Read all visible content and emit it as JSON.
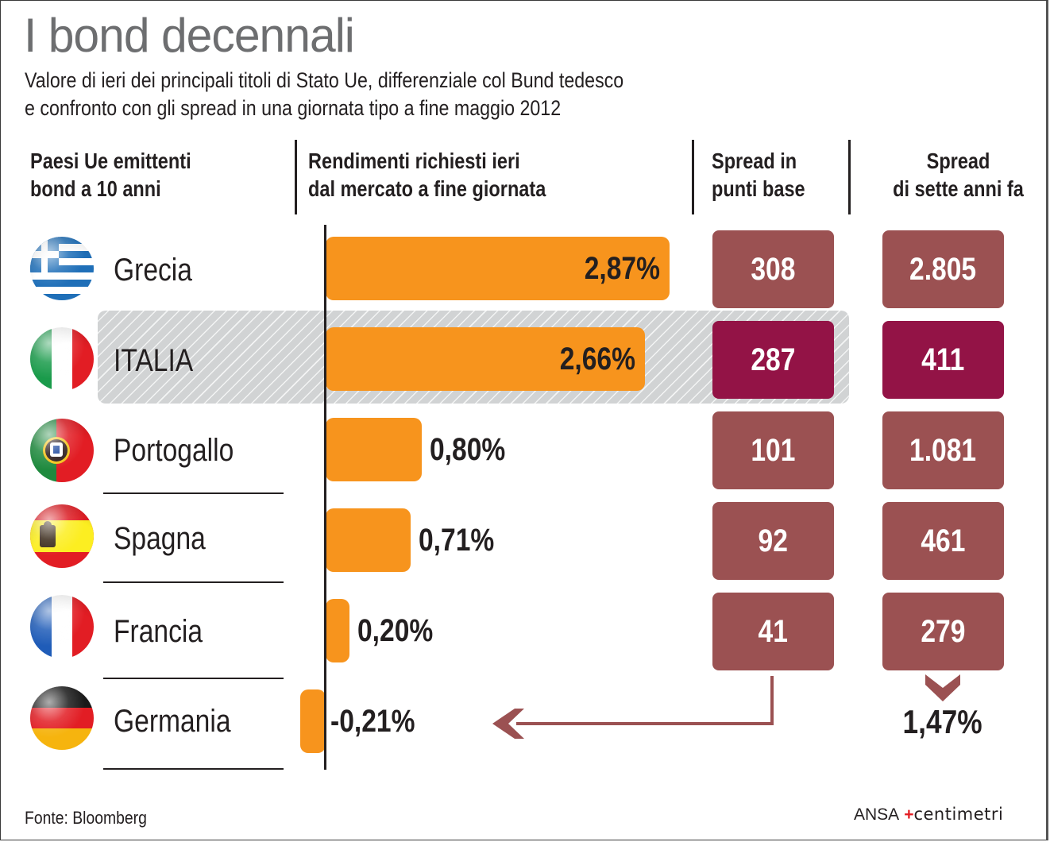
{
  "title": "I bond decennali",
  "subtitle_lines": [
    "Valore di ieri dei principali titoli di Stato Ue, differenziale col Bund tedesco",
    "e confronto con gli spread in una giornata tipo a fine maggio 2012"
  ],
  "columns": {
    "country": [
      "Paesi Ue emittenti",
      "bond a 10 anni"
    ],
    "yield": [
      "Rendimenti richiesti ieri",
      "dal mercato a fine giornata"
    ],
    "spread_now": [
      "Spread in",
      "punti base"
    ],
    "spread_then": [
      "Spread",
      "di sette anni fa"
    ]
  },
  "colors": {
    "bar": "#f7941d",
    "spread_box": "#9b5152",
    "spread_box_highlight": "#931346",
    "highlight_band": "#d1d3d4",
    "title": "#6d6e70"
  },
  "rows": [
    {
      "country": "Grecia",
      "flag": "greece-flag-icon",
      "yield_label": "2,87%",
      "spread_now": "308",
      "spread_then": "2.805",
      "highlight": false
    },
    {
      "country": "ITALIA",
      "flag": "italy-flag-icon",
      "yield_label": "2,66%",
      "spread_now": "287",
      "spread_then": "411",
      "highlight": true
    },
    {
      "country": "Portogallo",
      "flag": "portugal-flag-icon",
      "yield_label": "0,80%",
      "spread_now": "101",
      "spread_then": "1.081",
      "highlight": false
    },
    {
      "country": "Spagna",
      "flag": "spain-flag-icon",
      "yield_label": "0,71%",
      "spread_now": "92",
      "spread_then": "461",
      "highlight": false
    },
    {
      "country": "Francia",
      "flag": "france-flag-icon",
      "yield_label": "0,20%",
      "spread_now": "41",
      "spread_then": "279",
      "highlight": false
    },
    {
      "country": "Germania",
      "flag": "germany-flag-icon",
      "yield_label": "-0,21%",
      "spread_now": null,
      "spread_then": null,
      "highlight": false
    }
  ],
  "germany_then_yield": "1,47%",
  "source": "Fonte: Bloomberg",
  "logo": {
    "ansa": "ANSA",
    "plus": "+",
    "centimetri": "centimetri"
  },
  "chart_data": {
    "type": "bar",
    "orientation": "horizontal",
    "title": "I bond decennali",
    "subtitle": "Valore di ieri dei principali titoli di Stato Ue, differenziale col Bund tedesco e confronto con gli spread in una giornata tipo a fine maggio 2012",
    "categories": [
      "Grecia",
      "ITALIA",
      "Portogallo",
      "Spagna",
      "Francia",
      "Germania"
    ],
    "series": [
      {
        "name": "Rendimenti richiesti ieri dal mercato a fine giornata (%)",
        "values": [
          2.87,
          2.66,
          0.8,
          0.71,
          0.2,
          -0.21
        ]
      },
      {
        "name": "Spread in punti base",
        "values": [
          308,
          287,
          101,
          92,
          41,
          null
        ]
      },
      {
        "name": "Spread di sette anni fa",
        "values": [
          2805,
          411,
          1081,
          461,
          279,
          null
        ]
      }
    ],
    "annotations": [
      "Germania rendimento sette anni fa: 1,47%"
    ],
    "highlighted_category": "ITALIA",
    "xlabel": "",
    "ylabel": "",
    "source": "Fonte: Bloomberg"
  }
}
